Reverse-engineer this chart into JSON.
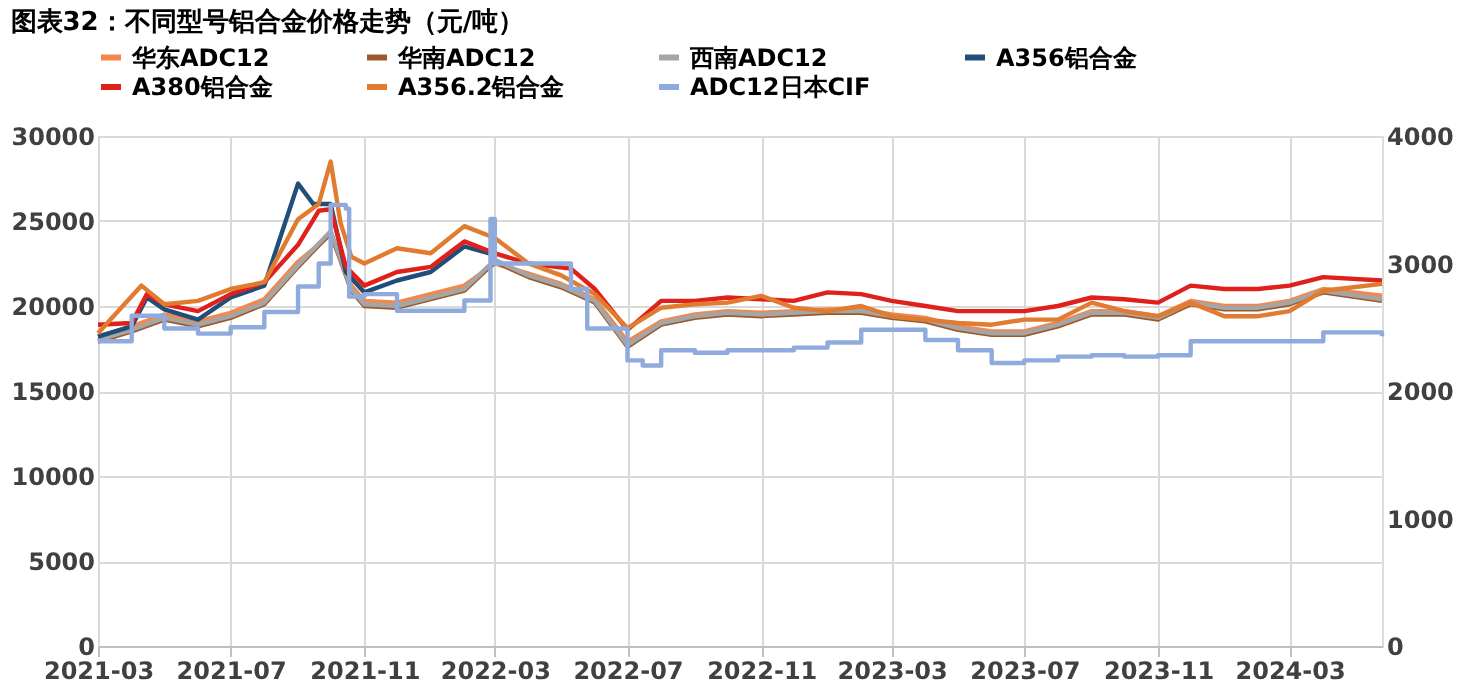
{
  "chart_data": {
    "type": "line",
    "title": "图表32：不同型号铝合金价格走势（元/吨）",
    "xlim": [
      "2021-03-01",
      "2024-05-25"
    ],
    "xticks": [
      "2021-03",
      "2021-07",
      "2021-11",
      "2022-03",
      "2022-07",
      "2022-11",
      "2023-03",
      "2023-07",
      "2023-11",
      "2024-03"
    ],
    "ylim": [
      0,
      30000
    ],
    "yticks": [
      0,
      5000,
      10000,
      15000,
      20000,
      25000,
      30000
    ],
    "y2lim": [
      0,
      4000
    ],
    "y2ticks": [
      0,
      1000,
      2000,
      3000,
      4000
    ],
    "grid": true,
    "legend": "top",
    "series": [
      {
        "name": "华东ADC12",
        "color": "#f4874b",
        "x": [
          "2021-03-01",
          "2021-04-01",
          "2021-05-01",
          "2021-06-01",
          "2021-07-01",
          "2021-08-01",
          "2021-09-01",
          "2021-10-01",
          "2021-10-20",
          "2021-11-01",
          "2021-12-01",
          "2022-01-01",
          "2022-02-01",
          "2022-03-01",
          "2022-04-01",
          "2022-05-01",
          "2022-06-01",
          "2022-07-01",
          "2022-08-01",
          "2022-09-01",
          "2022-10-01",
          "2022-11-01",
          "2022-12-01",
          "2023-01-01",
          "2023-02-01",
          "2023-03-01",
          "2023-04-01",
          "2023-05-01",
          "2023-06-01",
          "2023-07-01",
          "2023-08-01",
          "2023-09-01",
          "2023-10-01",
          "2023-11-01",
          "2023-12-01",
          "2024-01-01",
          "2024-02-01",
          "2024-03-01",
          "2024-04-01",
          "2024-05-25"
        ],
        "values": [
          18200,
          18800,
          19500,
          19100,
          19600,
          20400,
          22600,
          24200,
          21200,
          20300,
          20200,
          20700,
          21200,
          22500,
          21900,
          21300,
          20400,
          17900,
          19100,
          19500,
          19700,
          19600,
          19700,
          19800,
          19800,
          19500,
          19300,
          18800,
          18500,
          18500,
          19000,
          19700,
          19700,
          19400,
          20300,
          20000,
          20000,
          20300,
          21000,
          20600
        ]
      },
      {
        "name": "华南ADC12",
        "color": "#9c5a2a",
        "x": [
          "2021-03-01",
          "2021-04-01",
          "2021-05-01",
          "2021-06-01",
          "2021-07-01",
          "2021-08-01",
          "2021-09-01",
          "2021-10-01",
          "2021-10-20",
          "2021-11-01",
          "2021-12-01",
          "2022-01-01",
          "2022-02-01",
          "2022-03-01",
          "2022-04-01",
          "2022-05-01",
          "2022-06-01",
          "2022-07-01",
          "2022-08-01",
          "2022-09-01",
          "2022-10-01",
          "2022-11-01",
          "2022-12-01",
          "2023-01-01",
          "2023-02-01",
          "2023-03-01",
          "2023-04-01",
          "2023-05-01",
          "2023-06-01",
          "2023-07-01",
          "2023-08-01",
          "2023-09-01",
          "2023-10-01",
          "2023-11-01",
          "2023-12-01",
          "2024-01-01",
          "2024-02-01",
          "2024-03-01",
          "2024-04-01",
          "2024-05-25"
        ],
        "values": [
          17900,
          18500,
          19200,
          18800,
          19300,
          20100,
          22300,
          24300,
          20900,
          20000,
          19900,
          20400,
          20900,
          22600,
          21700,
          21100,
          20200,
          17600,
          18900,
          19300,
          19500,
          19400,
          19500,
          19600,
          19600,
          19300,
          19100,
          18600,
          18300,
          18300,
          18800,
          19500,
          19500,
          19200,
          20100,
          19800,
          19800,
          20100,
          20800,
          20300
        ]
      },
      {
        "name": "西南ADC12",
        "color": "#a5a5a5",
        "x": [
          "2021-03-01",
          "2021-04-01",
          "2021-05-01",
          "2021-06-01",
          "2021-07-01",
          "2021-08-01",
          "2021-09-01",
          "2021-10-01",
          "2021-10-20",
          "2021-11-01",
          "2021-12-01",
          "2022-01-01",
          "2022-02-01",
          "2022-03-01",
          "2022-04-01",
          "2022-05-01",
          "2022-06-01",
          "2022-07-01",
          "2022-08-01",
          "2022-09-01",
          "2022-10-01",
          "2022-11-01",
          "2022-12-01",
          "2023-01-01",
          "2023-02-01",
          "2023-03-01",
          "2023-04-01",
          "2023-05-01",
          "2023-06-01",
          "2023-07-01",
          "2023-08-01",
          "2023-09-01",
          "2023-10-01",
          "2023-11-01",
          "2023-12-01",
          "2024-01-01",
          "2024-02-01",
          "2024-03-01",
          "2024-04-01",
          "2024-05-25"
        ],
        "values": [
          18000,
          18600,
          19300,
          18900,
          19400,
          20200,
          22400,
          24400,
          21000,
          20100,
          20000,
          20500,
          21000,
          22700,
          21800,
          21200,
          20300,
          17700,
          19000,
          19400,
          19600,
          19500,
          19600,
          19700,
          19700,
          19400,
          19200,
          18700,
          18400,
          18400,
          18900,
          19600,
          19600,
          19300,
          20200,
          19900,
          19900,
          20200,
          20900,
          20400
        ]
      },
      {
        "name": "A356铝合金",
        "color": "#1f4e79",
        "x": [
          "2021-03-01",
          "2021-04-01",
          "2021-04-15",
          "2021-05-01",
          "2021-06-01",
          "2021-07-01",
          "2021-08-01",
          "2021-09-01",
          "2021-09-15",
          "2021-10-01",
          "2021-10-15",
          "2021-11-01",
          "2021-12-01",
          "2022-01-01",
          "2022-02-01",
          "2022-03-01"
        ],
        "values": [
          18200,
          18800,
          20500,
          19800,
          19200,
          20500,
          21200,
          27200,
          26000,
          26000,
          22000,
          20800,
          21500,
          22000,
          23500,
          23000
        ]
      },
      {
        "name": "A380铝合金",
        "color": "#e0201b",
        "x": [
          "2021-03-01",
          "2021-04-01",
          "2021-04-15",
          "2021-05-01",
          "2021-06-01",
          "2021-07-01",
          "2021-08-01",
          "2021-09-01",
          "2021-09-20",
          "2021-10-01",
          "2021-10-15",
          "2021-11-01",
          "2021-12-01",
          "2022-01-01",
          "2022-02-01",
          "2022-03-01",
          "2022-04-01",
          "2022-05-10",
          "2022-06-01",
          "2022-07-01",
          "2022-08-01",
          "2022-09-01",
          "2022-10-01",
          "2022-11-01",
          "2022-12-01",
          "2023-01-01",
          "2023-02-01",
          "2023-03-01",
          "2023-04-01",
          "2023-05-01",
          "2023-06-01",
          "2023-07-01",
          "2023-08-01",
          "2023-09-01",
          "2023-10-01",
          "2023-11-01",
          "2023-12-01",
          "2024-01-01",
          "2024-02-01",
          "2024-03-01",
          "2024-04-01",
          "2024-05-25"
        ],
        "values": [
          18900,
          19000,
          20700,
          20100,
          19700,
          20700,
          21400,
          23600,
          25600,
          25700,
          22300,
          21200,
          22000,
          22300,
          23800,
          23100,
          22500,
          22200,
          21000,
          18600,
          20300,
          20300,
          20500,
          20400,
          20300,
          20800,
          20700,
          20300,
          20000,
          19700,
          19700,
          19700,
          20000,
          20500,
          20400,
          20200,
          21200,
          21000,
          21000,
          21200,
          21700,
          21500
        ]
      },
      {
        "name": "A356.2铝合金",
        "color": "#e07b30",
        "x": [
          "2021-03-01",
          "2021-04-10",
          "2021-05-01",
          "2021-06-01",
          "2021-07-01",
          "2021-08-01",
          "2021-09-01",
          "2021-09-20",
          "2021-10-01",
          "2021-10-10",
          "2021-10-20",
          "2021-11-01",
          "2021-12-01",
          "2022-01-01",
          "2022-02-01",
          "2022-03-01",
          "2022-04-01",
          "2022-05-01",
          "2022-06-01",
          "2022-07-01",
          "2022-08-01",
          "2022-09-01",
          "2022-10-01",
          "2022-11-01",
          "2022-12-01",
          "2023-01-01",
          "2023-02-01",
          "2023-03-01",
          "2023-04-01",
          "2023-05-01",
          "2023-06-01",
          "2023-07-01",
          "2023-08-01",
          "2023-09-01",
          "2023-10-01",
          "2023-11-01",
          "2023-12-01",
          "2024-01-01",
          "2024-02-01",
          "2024-03-01",
          "2024-04-01",
          "2024-05-25"
        ],
        "values": [
          18400,
          21200,
          20100,
          20300,
          21000,
          21400,
          25100,
          26000,
          28500,
          24900,
          22900,
          22500,
          23400,
          23100,
          24700,
          24000,
          22500,
          21800,
          20700,
          18700,
          19900,
          20100,
          20200,
          20600,
          19900,
          19700,
          20000,
          19400,
          19200,
          19000,
          18900,
          19200,
          19200,
          20200,
          19700,
          19400,
          20200,
          19400,
          19400,
          19700,
          20900,
          21300
        ]
      },
      {
        "name": "ADC12日本CIF",
        "color": "#8faadc",
        "type": "step",
        "axis": "y2",
        "x": [
          "2021-03-01",
          "2021-04-01",
          "2021-05-01",
          "2021-06-01",
          "2021-07-01",
          "2021-08-01",
          "2021-09-01",
          "2021-09-20",
          "2021-10-01",
          "2021-10-15",
          "2021-10-18",
          "2021-11-01",
          "2021-12-01",
          "2022-01-01",
          "2022-02-01",
          "2022-02-25",
          "2022-03-01",
          "2022-04-01",
          "2022-05-10",
          "2022-05-25",
          "2022-07-01",
          "2022-07-15",
          "2022-08-01",
          "2022-09-01",
          "2022-10-01",
          "2022-11-01",
          "2022-12-01",
          "2023-01-01",
          "2023-02-01",
          "2023-03-01",
          "2023-04-01",
          "2023-05-01",
          "2023-06-01",
          "2023-07-01",
          "2023-08-01",
          "2023-09-01",
          "2023-10-01",
          "2023-11-01",
          "2023-12-01",
          "2024-01-01",
          "2024-02-01",
          "2024-03-01",
          "2024-04-01",
          "2024-05-25"
        ],
        "values": [
          2390,
          2590,
          2490,
          2450,
          2500,
          2620,
          2820,
          3000,
          3460,
          3430,
          2740,
          2760,
          2630,
          2630,
          2710,
          3350,
          3000,
          3000,
          2800,
          2490,
          2240,
          2200,
          2320,
          2300,
          2320,
          2320,
          2340,
          2380,
          2480,
          2480,
          2400,
          2320,
          2220,
          2240,
          2270,
          2280,
          2270,
          2280,
          2390,
          2390,
          2390,
          2390,
          2460,
          2430
        ]
      }
    ]
  }
}
